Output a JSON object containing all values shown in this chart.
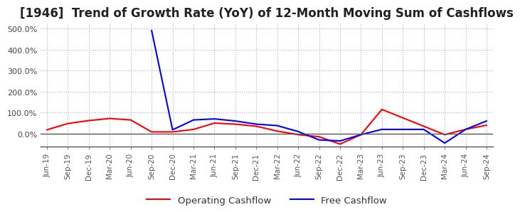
{
  "title": "[1946]  Trend of Growth Rate (YoY) of 12-Month Moving Sum of Cashflows",
  "title_fontsize": 12,
  "ylim": [
    -60,
    520
  ],
  "yticks": [
    0,
    100,
    200,
    300,
    400,
    500
  ],
  "background_color": "#ffffff",
  "grid_color": "#aaaacc",
  "legend_labels": [
    "Operating Cashflow",
    "Free Cashflow"
  ],
  "legend_colors": [
    "#ff0000",
    "#0000ff"
  ],
  "x_labels": [
    "Jun-19",
    "Sep-19",
    "Dec-19",
    "Mar-20",
    "Jun-20",
    "Sep-20",
    "Dec-20",
    "Mar-21",
    "Jun-21",
    "Sep-21",
    "Dec-21",
    "Mar-22",
    "Jun-22",
    "Sep-22",
    "Dec-22",
    "Mar-23",
    "Jun-23",
    "Sep-23",
    "Dec-23",
    "Mar-24",
    "Jun-24",
    "Sep-24"
  ],
  "operating_cashflow": [
    18,
    48,
    62,
    72,
    65,
    8,
    8,
    20,
    50,
    45,
    35,
    12,
    -5,
    -15,
    -50,
    -5,
    115,
    75,
    35,
    -5,
    20,
    40
  ],
  "free_cashflow": [
    null,
    null,
    null,
    null,
    null,
    490,
    18,
    65,
    70,
    60,
    45,
    38,
    10,
    -30,
    -35,
    -5,
    20,
    20,
    20,
    -45,
    20,
    60
  ]
}
